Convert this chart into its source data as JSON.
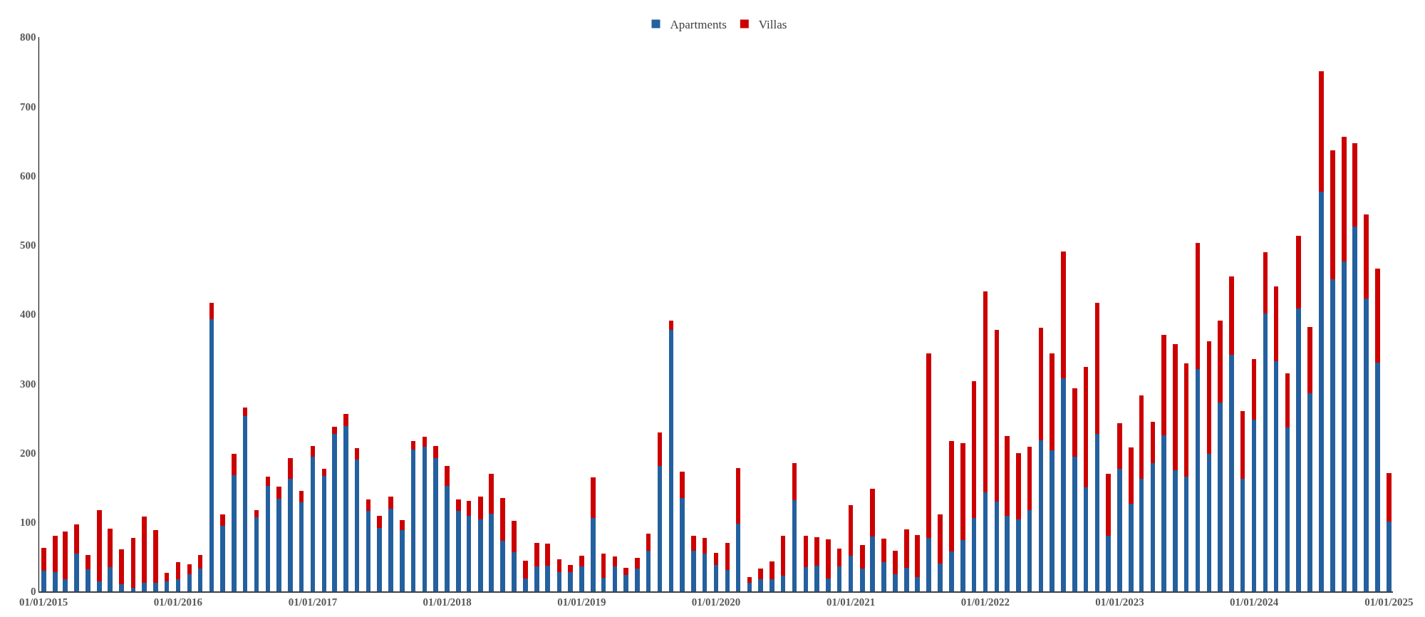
{
  "chart_data": {
    "type": "bar",
    "stacked": true,
    "x": [
      "2015-01",
      "2015-02",
      "2015-03",
      "2015-04",
      "2015-05",
      "2015-06",
      "2015-07",
      "2015-08",
      "2015-09",
      "2015-10",
      "2015-11",
      "2015-12",
      "2016-01",
      "2016-02",
      "2016-03",
      "2016-04",
      "2016-05",
      "2016-06",
      "2016-07",
      "2016-08",
      "2016-09",
      "2016-10",
      "2016-11",
      "2016-12",
      "2017-01",
      "2017-02",
      "2017-03",
      "2017-04",
      "2017-05",
      "2017-06",
      "2017-07",
      "2017-08",
      "2017-09",
      "2017-10",
      "2017-11",
      "2017-12",
      "2018-01",
      "2018-02",
      "2018-03",
      "2018-04",
      "2018-05",
      "2018-06",
      "2018-07",
      "2018-08",
      "2018-09",
      "2018-10",
      "2018-11",
      "2018-12",
      "2019-01",
      "2019-02",
      "2019-03",
      "2019-04",
      "2019-05",
      "2019-06",
      "2019-07",
      "2019-08",
      "2019-09",
      "2019-10",
      "2019-11",
      "2019-12",
      "2020-01",
      "2020-02",
      "2020-03",
      "2020-04",
      "2020-05",
      "2020-06",
      "2020-07",
      "2020-08",
      "2020-09",
      "2020-10",
      "2020-11",
      "2020-12",
      "2021-01",
      "2021-02",
      "2021-03",
      "2021-04",
      "2021-05",
      "2021-06",
      "2021-07",
      "2021-08",
      "2021-09",
      "2021-10",
      "2021-11",
      "2021-12",
      "2022-01",
      "2022-02",
      "2022-03",
      "2022-04",
      "2022-05",
      "2022-06",
      "2022-07",
      "2022-08",
      "2022-09",
      "2022-10",
      "2022-11",
      "2022-12",
      "2023-01",
      "2023-02",
      "2023-03",
      "2023-04",
      "2023-05",
      "2023-06",
      "2023-07",
      "2023-08",
      "2023-09",
      "2023-10",
      "2023-11",
      "2023-12",
      "2024-01",
      "2024-02",
      "2024-03",
      "2024-04",
      "2024-05",
      "2024-06",
      "2024-07",
      "2024-08",
      "2024-09",
      "2024-10",
      "2024-11",
      "2024-12",
      "2025-01"
    ],
    "series": [
      {
        "name": "Apartments",
        "color": "#24609e",
        "values": [
          30,
          28,
          18,
          55,
          32,
          14,
          35,
          10,
          5,
          12,
          12,
          14,
          18,
          25,
          33,
          393,
          95,
          168,
          253,
          107,
          152,
          134,
          162,
          129,
          194,
          167,
          227,
          239,
          190,
          116,
          92,
          119,
          88,
          205,
          209,
          192,
          152,
          116,
          109,
          104,
          112,
          73,
          57,
          19,
          36,
          37,
          28,
          28,
          36,
          106,
          20,
          36,
          24,
          33,
          59,
          181,
          377,
          135,
          59,
          54,
          38,
          31,
          98,
          12,
          18,
          18,
          23,
          132,
          35,
          37,
          19,
          36,
          51,
          33,
          79,
          42,
          25,
          34,
          21,
          77,
          40,
          58,
          74,
          106,
          143,
          130,
          109,
          104,
          117,
          218,
          204,
          307,
          194,
          150,
          227,
          80,
          177,
          126,
          162,
          185,
          225,
          175,
          166,
          321,
          198,
          272,
          341,
          162,
          248,
          401,
          332,
          236,
          408,
          286,
          577,
          450,
          476,
          526,
          423,
          330,
          101
        ]
      },
      {
        "name": "Villas",
        "color": "#cc0000",
        "values": [
          33,
          52,
          68,
          42,
          20,
          103,
          56,
          51,
          72,
          96,
          76,
          13,
          24,
          14,
          19,
          23,
          16,
          30,
          12,
          10,
          14,
          17,
          30,
          16,
          16,
          10,
          11,
          17,
          17,
          17,
          17,
          18,
          15,
          12,
          14,
          18,
          29,
          17,
          22,
          33,
          58,
          62,
          45,
          25,
          34,
          32,
          18,
          10,
          15,
          59,
          35,
          14,
          10,
          15,
          24,
          48,
          14,
          38,
          21,
          23,
          18,
          39,
          80,
          9,
          15,
          25,
          57,
          53,
          45,
          41,
          56,
          26,
          73,
          34,
          69,
          34,
          34,
          55,
          60,
          266,
          71,
          159,
          140,
          197,
          290,
          247,
          115,
          95,
          92,
          162,
          139,
          184,
          99,
          174,
          189,
          90,
          66,
          82,
          121,
          60,
          145,
          182,
          163,
          182,
          163,
          119,
          114,
          98,
          87,
          88,
          108,
          79,
          105,
          95,
          174,
          186,
          180,
          121,
          121,
          136,
          70
        ]
      }
    ],
    "ylim": [
      0,
      800
    ],
    "yticks": [
      0,
      100,
      200,
      300,
      400,
      500,
      600,
      700,
      800
    ],
    "xlim": [
      "2014-12-20",
      "2025-01-12"
    ],
    "xticks": [
      {
        "value": "2015-01-01",
        "label": "01/01/2015"
      },
      {
        "value": "2016-01-01",
        "label": "01/01/2016"
      },
      {
        "value": "2017-01-01",
        "label": "01/01/2017"
      },
      {
        "value": "2018-01-01",
        "label": "01/01/2018"
      },
      {
        "value": "2019-01-01",
        "label": "01/01/2019"
      },
      {
        "value": "2020-01-01",
        "label": "01/01/2020"
      },
      {
        "value": "2021-01-01",
        "label": "01/01/2021"
      },
      {
        "value": "2022-01-01",
        "label": "01/01/2022"
      },
      {
        "value": "2023-01-01",
        "label": "01/01/2023"
      },
      {
        "value": "2024-01-01",
        "label": "01/01/2024"
      },
      {
        "value": "2025-01-01",
        "label": "01/01/2025"
      }
    ],
    "grid": false,
    "legend": "top"
  }
}
